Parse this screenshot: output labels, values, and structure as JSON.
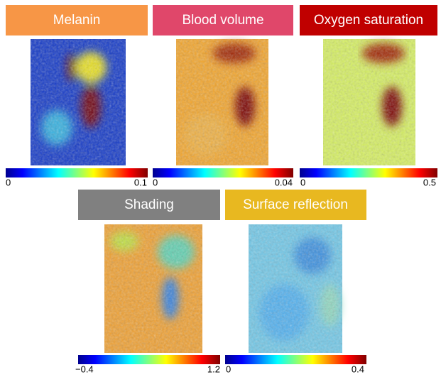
{
  "panels": [
    {
      "title": "Melanin",
      "min_label": "0",
      "max_label": "0.1"
    },
    {
      "title": "Blood volume",
      "min_label": "0",
      "max_label": "0.04"
    },
    {
      "title": "Oxygen saturation",
      "min_label": "0",
      "max_label": "0.5"
    },
    {
      "title": "Shading",
      "min_label": "−0.4",
      "max_label": "1.2"
    },
    {
      "title": "Surface reflection",
      "min_label": "0",
      "max_label": "0.4"
    }
  ]
}
